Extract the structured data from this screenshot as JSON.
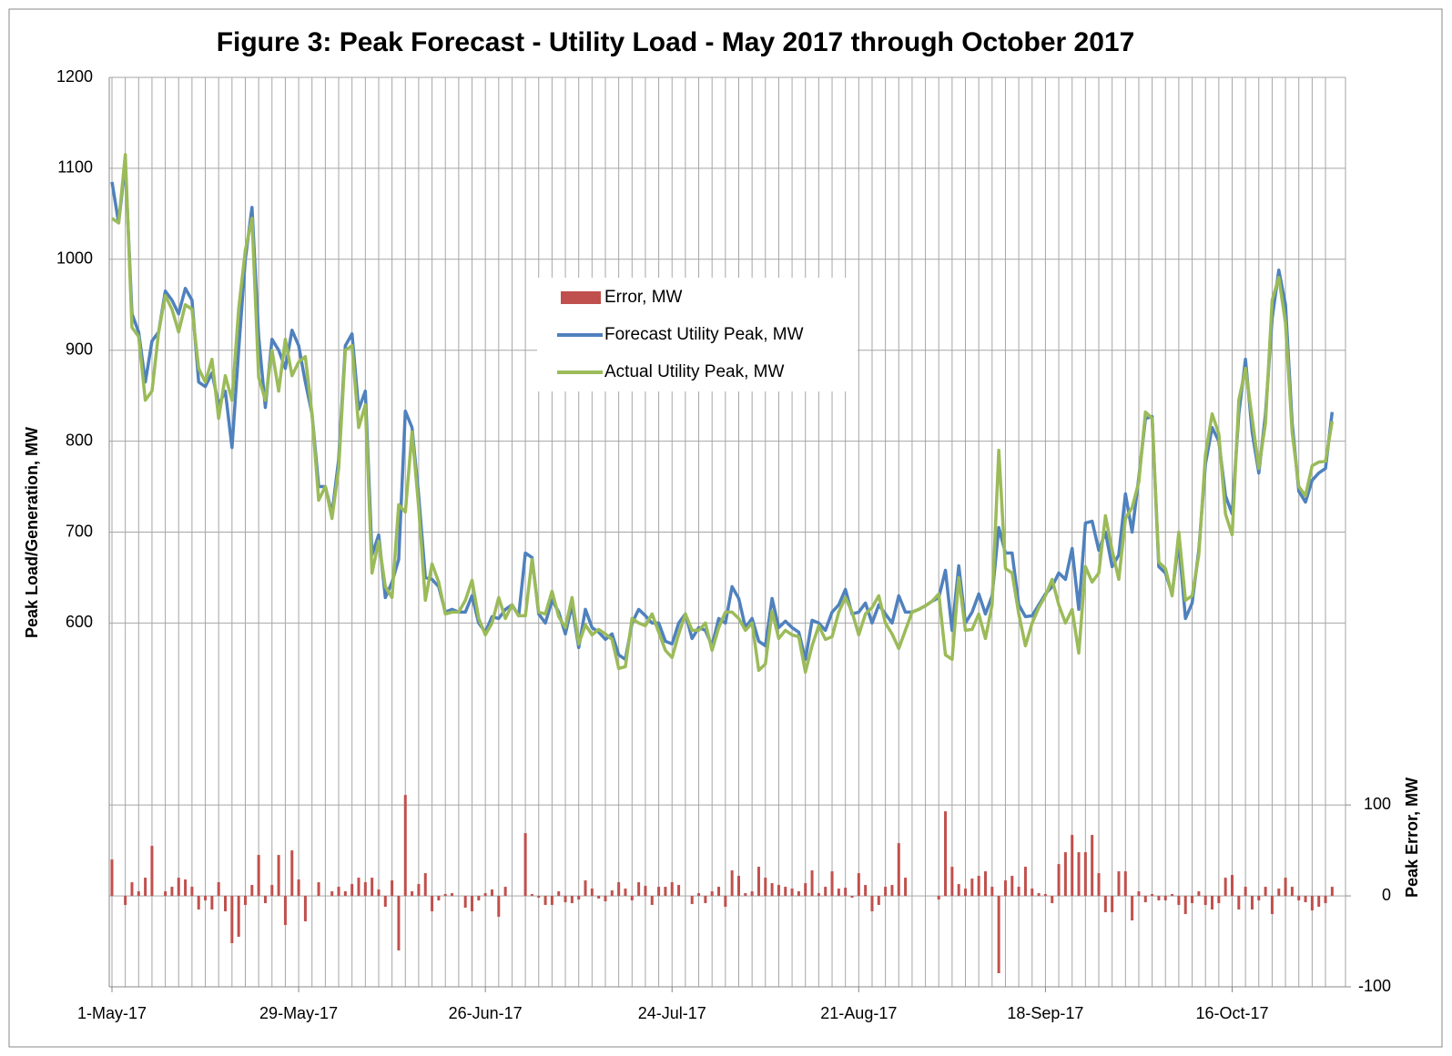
{
  "chart_data": {
    "type": "line_bar",
    "title": "Figure 3:  Peak Forecast - Utility Load - May 2017 through October 2017",
    "y_label": "Peak Load/Generation, MW",
    "y2_label": "Peak Error, MW",
    "categories": [
      "1-May-17",
      null,
      null,
      null,
      null,
      null,
      null,
      null,
      null,
      null,
      null,
      null,
      null,
      null,
      null,
      null,
      null,
      null,
      null,
      null,
      null,
      null,
      null,
      null,
      null,
      null,
      null,
      null,
      "29-May-17",
      null,
      null,
      null,
      null,
      null,
      null,
      null,
      null,
      null,
      null,
      null,
      null,
      null,
      null,
      null,
      null,
      null,
      null,
      null,
      null,
      null,
      null,
      null,
      null,
      null,
      null,
      null,
      "26-Jun-17",
      null,
      null,
      null,
      null,
      null,
      null,
      null,
      null,
      null,
      null,
      null,
      null,
      null,
      null,
      null,
      null,
      null,
      null,
      null,
      null,
      null,
      null,
      null,
      null,
      null,
      null,
      null,
      "24-Jul-17",
      null,
      null,
      null,
      null,
      null,
      null,
      null,
      null,
      null,
      null,
      null,
      null,
      null,
      null,
      null,
      null,
      null,
      null,
      null,
      null,
      null,
      null,
      null,
      null,
      null,
      null,
      null,
      "21-Aug-17",
      null,
      null,
      null,
      null,
      null,
      null,
      null,
      null,
      null,
      null,
      null,
      null,
      null,
      null,
      null,
      null,
      null,
      null,
      null,
      null,
      null,
      null,
      null,
      null,
      null,
      null,
      null,
      "18-Sep-17",
      null,
      null,
      null,
      null,
      null,
      null,
      null,
      null,
      null,
      null,
      null,
      null,
      null,
      null,
      null,
      null,
      null,
      null,
      null,
      null,
      null,
      null,
      null,
      null,
      null,
      null,
      null,
      "16-Oct-17",
      null,
      null,
      null,
      null,
      null,
      null,
      null,
      null,
      null,
      null,
      null,
      null,
      null,
      null,
      null
    ],
    "series": [
      {
        "name": "Error, MW",
        "color": "#c0504d",
        "kind": "bar",
        "axis": "y2",
        "values": [
          40,
          0,
          -10,
          15,
          5,
          20,
          55,
          0,
          5,
          10,
          20,
          18,
          10,
          -15,
          -5,
          -15,
          15,
          -17,
          -52,
          -45,
          -10,
          12,
          45,
          -8,
          12,
          45,
          -32,
          50,
          18,
          -28,
          0,
          15,
          0,
          5,
          10,
          5,
          13,
          20,
          15,
          20,
          7,
          -12,
          17,
          -60,
          111,
          5,
          13,
          25,
          -17,
          -5,
          2,
          3,
          0,
          -13,
          -17,
          -5,
          3,
          7,
          -23,
          10,
          0,
          0,
          69,
          2,
          -2,
          -10,
          -10,
          5,
          -7,
          -8,
          -4,
          17,
          8,
          -3,
          -6,
          6,
          15,
          8,
          -5,
          15,
          11,
          -10,
          10,
          10,
          15,
          12,
          0,
          -9,
          3,
          -8,
          5,
          10,
          -12,
          28,
          22,
          3,
          5,
          32,
          20,
          14,
          12,
          10,
          8,
          5,
          14,
          28,
          3,
          10,
          27,
          8,
          9,
          -2,
          25,
          12,
          -17,
          -10,
          10,
          12,
          58,
          20,
          0,
          0,
          0,
          0,
          -4,
          93,
          32,
          13,
          8,
          19,
          22,
          27,
          10,
          -85,
          17,
          22,
          10,
          32,
          8,
          3,
          2,
          -8,
          35,
          48,
          67,
          48,
          48,
          67,
          25,
          -18,
          -18,
          27,
          27,
          -27,
          5,
          -7,
          2,
          -5,
          -5,
          2,
          -10,
          -20,
          -8,
          5,
          -10,
          -15,
          -8,
          20,
          23,
          -15,
          10,
          -15,
          -5,
          10,
          -20,
          8,
          20,
          10,
          -5,
          -7,
          -16,
          -12,
          -8,
          10
        ]
      },
      {
        "name": "Forecast Utility Peak, MW",
        "color": "#4f81bd",
        "kind": "line",
        "values": [
          1085,
          1040,
          1105,
          940,
          920,
          865,
          910,
          920,
          965,
          955,
          940,
          968,
          955,
          865,
          860,
          875,
          840,
          855,
          793,
          900,
          1000,
          1057,
          915,
          837,
          912,
          900,
          880,
          922,
          905,
          865,
          830,
          750,
          750,
          720,
          780,
          905,
          918,
          835,
          855,
          675,
          697,
          628,
          645,
          670,
          833,
          815,
          740,
          650,
          648,
          640,
          612,
          615,
          612,
          612,
          630,
          600,
          590,
          607,
          605,
          615,
          620,
          608,
          677,
          672,
          610,
          600,
          625,
          612,
          588,
          620,
          573,
          615,
          595,
          590,
          582,
          588,
          565,
          560,
          600,
          615,
          608,
          600,
          600,
          580,
          577,
          600,
          610,
          583,
          595,
          592,
          575,
          605,
          600,
          640,
          627,
          595,
          605,
          580,
          575,
          627,
          595,
          602,
          595,
          590,
          560,
          603,
          600,
          592,
          612,
          620,
          637,
          610,
          612,
          622,
          600,
          620,
          610,
          600,
          630,
          612,
          612,
          615,
          619,
          624,
          628,
          658,
          592,
          663,
          600,
          612,
          632,
          610,
          630,
          705,
          677,
          677,
          620,
          607,
          608,
          620,
          632,
          640,
          655,
          648,
          682,
          615,
          710,
          712,
          680,
          700,
          662,
          675,
          742,
          700,
          760,
          825,
          827,
          662,
          655,
          632,
          690,
          605,
          622,
          680,
          775,
          815,
          800,
          740,
          720,
          830,
          890,
          810,
          765,
          830,
          935,
          988,
          950,
          820,
          745,
          733,
          757,
          765,
          770,
          832
        ]
      },
      {
        "name": "Actual Utility Peak, MW",
        "color": "#9bbb59",
        "kind": "line",
        "values": [
          1045,
          1040,
          1115,
          925,
          915,
          845,
          855,
          920,
          960,
          945,
          920,
          950,
          945,
          880,
          865,
          890,
          825,
          872,
          845,
          945,
          1010,
          1045,
          870,
          845,
          900,
          855,
          912,
          872,
          887,
          893,
          830,
          735,
          750,
          715,
          770,
          900,
          905,
          815,
          840,
          655,
          690,
          640,
          628,
          730,
          722,
          810,
          727,
          625,
          665,
          645,
          610,
          612,
          612,
          625,
          647,
          605,
          587,
          600,
          628,
          605,
          620,
          608,
          608,
          670,
          612,
          610,
          635,
          607,
          595,
          628,
          577,
          598,
          587,
          593,
          588,
          582,
          550,
          552,
          605,
          600,
          597,
          610,
          590,
          570,
          562,
          588,
          610,
          592,
          592,
          600,
          570,
          595,
          612,
          612,
          605,
          592,
          600,
          548,
          555,
          613,
          583,
          592,
          587,
          585,
          546,
          575,
          597,
          582,
          585,
          612,
          628,
          612,
          587,
          610,
          617,
          630,
          600,
          588,
          572,
          592,
          612,
          615,
          619,
          624,
          632,
          565,
          560,
          650,
          592,
          593,
          610,
          583,
          620,
          790,
          660,
          655,
          610,
          575,
          600,
          617,
          630,
          648,
          620,
          600,
          615,
          567,
          662,
          645,
          655,
          718,
          680,
          648,
          715,
          727,
          755,
          832,
          825,
          667,
          660,
          630,
          700,
          625,
          630,
          675,
          785,
          830,
          808,
          720,
          697,
          845,
          880,
          825,
          770,
          820,
          955,
          980,
          930,
          810,
          750,
          740,
          773,
          777,
          778,
          822
        ]
      }
    ],
    "ylim": [
      200,
      1200
    ],
    "yticks": [
      600,
      700,
      800,
      900,
      1000,
      1100,
      1200
    ],
    "y2lim": [
      -100,
      900
    ],
    "y2ticks": [
      -100,
      0,
      100
    ],
    "grid": true,
    "legend": "center"
  }
}
